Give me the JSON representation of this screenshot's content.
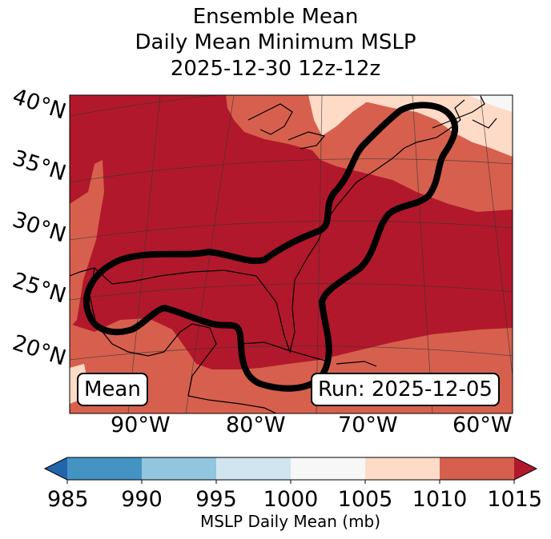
{
  "title": {
    "line1": "Ensemble Mean",
    "line2": "Daily Mean Minimum MSLP",
    "line3": "2025-12-30 12z-12z"
  },
  "map": {
    "lat_labels": [
      "40°N",
      "35°N",
      "30°N",
      "25°N",
      "20°N"
    ],
    "lon_labels": [
      "90°W",
      "80°W",
      "70°W",
      "60°W"
    ],
    "badge_left": "Mean",
    "badge_right": "Run: 2025-12-05",
    "fill_colors": {
      "lt1005": "#f7f7f7",
      "1005_1010": "#fddbc7",
      "1010_1015": "#d6604d",
      "gt1015": "#b2182b"
    }
  },
  "colorbar": {
    "ticks": [
      "985",
      "990",
      "995",
      "1000",
      "1005",
      "1010",
      "1015"
    ],
    "colors": [
      "#2166ac",
      "#4393c3",
      "#92c5de",
      "#d1e5f0",
      "#f7f7f7",
      "#fddbc7",
      "#d6604d",
      "#b2182b"
    ],
    "label": "MSLP Daily Mean (mb)"
  }
}
